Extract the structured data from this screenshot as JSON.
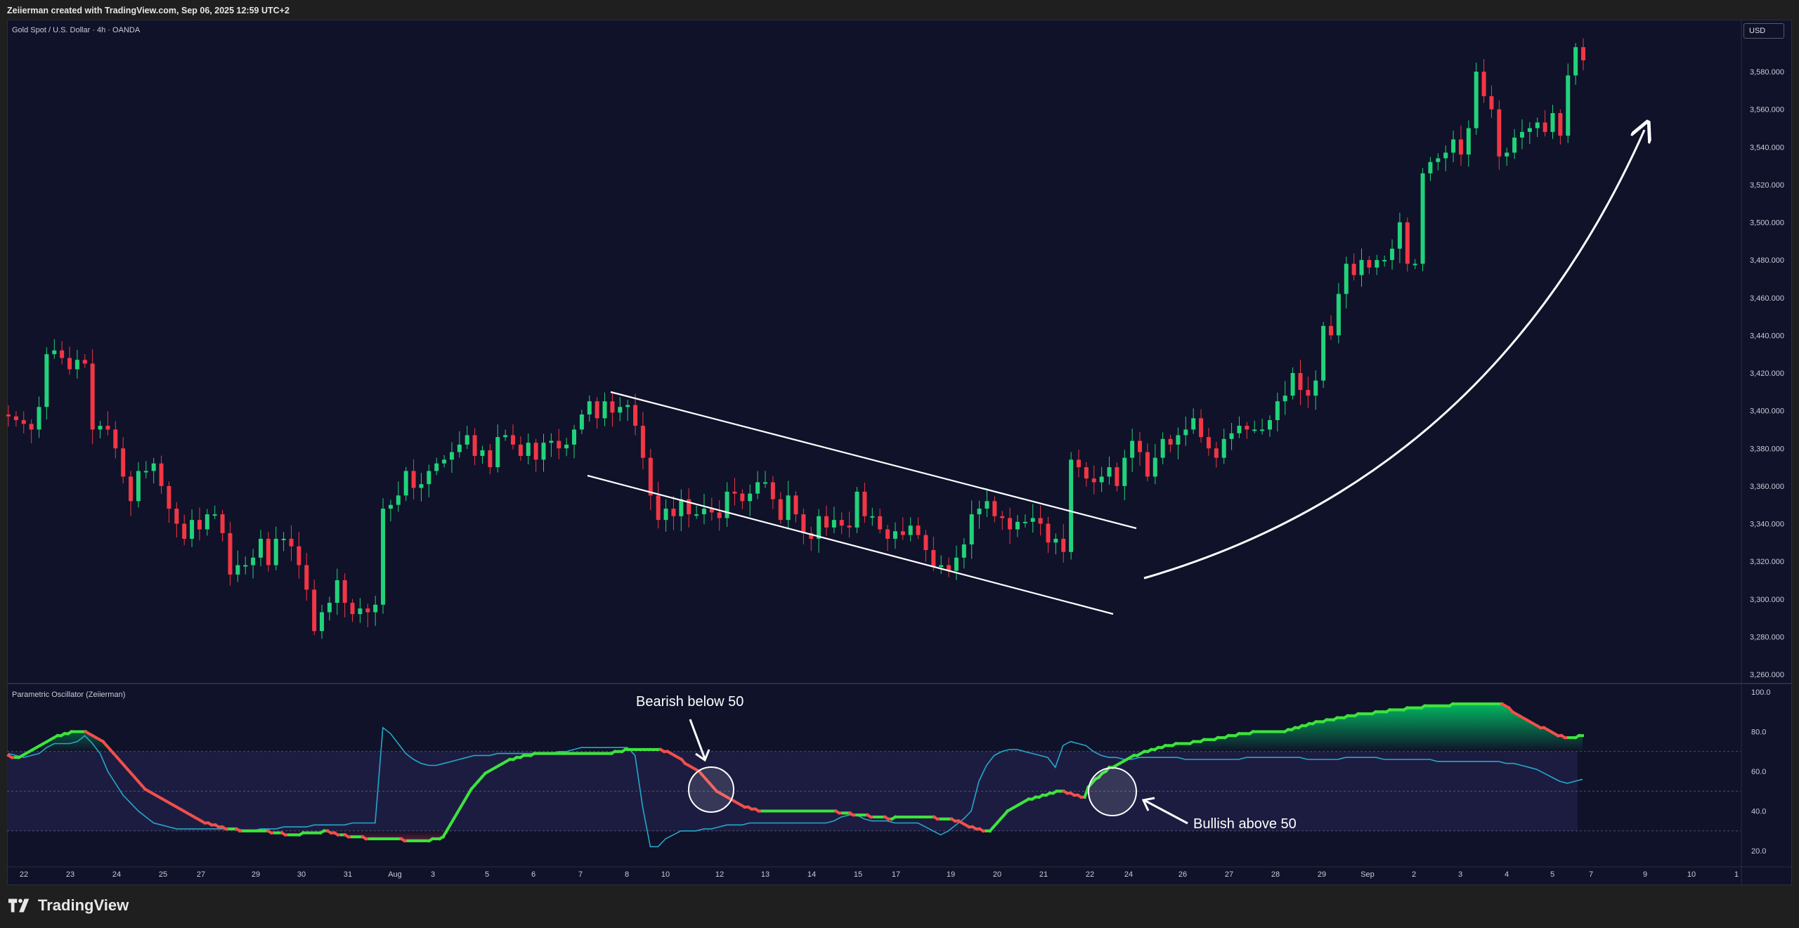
{
  "header": {
    "attribution": "Zeiierman created with TradingView.com, Sep 06, 2025 12:59 UTC+2"
  },
  "chart": {
    "symbol_title": "Gold Spot / U.S. Dollar · 4h · OANDA",
    "currency_button": "USD",
    "oscillator_title": "Parametric Oscillator (Zeiierman)",
    "annotations": {
      "bearish": "Bearish below 50",
      "bullish": "Bullish above 50"
    }
  },
  "footer": {
    "brand": "TradingView"
  },
  "colors": {
    "background": "#0f1229",
    "bull": "#22d27a",
    "bear": "#f23645",
    "osc_bull": "#3ee33e",
    "osc_bear": "#f0504a",
    "signal": "#26a7c9"
  },
  "chart_data": [
    {
      "type": "candlestick",
      "title": "Gold Spot / U.S. Dollar · 4h · OANDA",
      "y_axis_ticks": [
        3260,
        3280,
        3300,
        3320,
        3340,
        3360,
        3380,
        3400,
        3420,
        3440,
        3460,
        3480,
        3500,
        3520,
        3540,
        3560,
        3580
      ],
      "ylim": [
        3252,
        3600
      ],
      "x_tick_labels": [
        "22",
        "23",
        "24",
        "25",
        "27",
        "29",
        "30",
        "31",
        "Aug",
        "3",
        "5",
        "6",
        "7",
        "8",
        "10",
        "12",
        "13",
        "14",
        "15",
        "17",
        "19",
        "20",
        "21",
        "22",
        "24",
        "26",
        "27",
        "28",
        "29",
        "Sep",
        "2",
        "3",
        "4",
        "5",
        "7",
        "9",
        "10",
        "1"
      ],
      "close_series": [
        3397,
        3395,
        3393,
        3390,
        3402,
        3430,
        3432,
        3428,
        3422,
        3427,
        3425,
        3390,
        3392,
        3390,
        3380,
        3365,
        3352,
        3368,
        3368,
        3372,
        3360,
        3348,
        3340,
        3332,
        3342,
        3337,
        3345,
        3345,
        3335,
        3313,
        3318,
        3318,
        3322,
        3332,
        3318,
        3332,
        3332,
        3328,
        3318,
        3305,
        3283,
        3293,
        3298,
        3310,
        3298,
        3292,
        3295,
        3293,
        3297,
        3348,
        3350,
        3355,
        3368,
        3359,
        3361,
        3368,
        3372,
        3374,
        3378,
        3382,
        3387,
        3376,
        3379,
        3370,
        3386,
        3387,
        3382,
        3376,
        3383,
        3374,
        3383,
        3384,
        3380,
        3382,
        3390,
        3398,
        3405,
        3396,
        3405,
        3399,
        3402,
        3403,
        3392,
        3375,
        3355,
        3342,
        3348,
        3344,
        3353,
        3345,
        3345,
        3348,
        3346,
        3343,
        3357,
        3356,
        3352,
        3356,
        3362,
        3362,
        3353,
        3342,
        3355,
        3345,
        3335,
        3332,
        3344,
        3338,
        3342,
        3339,
        3338,
        3357,
        3344,
        3344,
        3337,
        3332,
        3336,
        3334,
        3339,
        3334,
        3326,
        3317,
        3318,
        3315,
        3322,
        3329,
        3345,
        3348,
        3352,
        3344,
        3343,
        3337,
        3341,
        3341,
        3343,
        3340,
        3330,
        3332,
        3325,
        3374,
        3370,
        3364,
        3362,
        3365,
        3370,
        3360,
        3375,
        3384,
        3378,
        3365,
        3375,
        3385,
        3382,
        3387,
        3390,
        3396,
        3386,
        3380,
        3375,
        3385,
        3388,
        3392,
        3390,
        3390,
        3390,
        3395,
        3405,
        3408,
        3420,
        3411,
        3408,
        3416,
        3445,
        3440,
        3462,
        3478,
        3472,
        3480,
        3476,
        3480,
        3480,
        3486,
        3500,
        3478,
        3478,
        3526,
        3532,
        3534,
        3537,
        3544,
        3536,
        3550,
        3580,
        3567,
        3560,
        3535,
        3537,
        3545,
        3548,
        3550,
        3553,
        3548,
        3558,
        3546,
        3578,
        3593,
        3586
      ],
      "annotations": [
        "descending channel",
        "upward curved arrow"
      ]
    },
    {
      "type": "line",
      "title": "Parametric Oscillator (Zeiierman)",
      "y_axis_ticks": [
        20,
        40,
        60,
        80,
        100
      ],
      "ylim": [
        13.4,
        102
      ],
      "levels": [
        30,
        50,
        70
      ],
      "series": [
        {
          "values": [
            68,
            67,
            67,
            67,
            68,
            69,
            70,
            71,
            72,
            73,
            74,
            75,
            76,
            77,
            78,
            78,
            79,
            79,
            80,
            80,
            80,
            80,
            80,
            79,
            78,
            77,
            76,
            75,
            73,
            71,
            69,
            67,
            65,
            63,
            61,
            59,
            57,
            55,
            53,
            51,
            50,
            49,
            48,
            47,
            46,
            45,
            44,
            43,
            42,
            41,
            40,
            39,
            38,
            37,
            36,
            35,
            34,
            34,
            33,
            33,
            32,
            32,
            31,
            31,
            31,
            31,
            30,
            30,
            30,
            30,
            30,
            30,
            30,
            30,
            30,
            29,
            29,
            29,
            29,
            28,
            28,
            28,
            28,
            28,
            29,
            29,
            29,
            29,
            29,
            29,
            30,
            30,
            29,
            29,
            28,
            28,
            28,
            27,
            27,
            27,
            27,
            27,
            26,
            26,
            26,
            26,
            26,
            26,
            26,
            26,
            26,
            26,
            26,
            25,
            25,
            25,
            25,
            25,
            25,
            25,
            25,
            26,
            26,
            26,
            27,
            30,
            33,
            36,
            39,
            42,
            45,
            48,
            51,
            53,
            55,
            57,
            59,
            60,
            61,
            62,
            63,
            64,
            65,
            66,
            66,
            67,
            67,
            68,
            68,
            68,
            69,
            69,
            69,
            69,
            69,
            69,
            69,
            69,
            69,
            69,
            69,
            69,
            69,
            69,
            69,
            69,
            69,
            69,
            69,
            69,
            69,
            69,
            69,
            70,
            70,
            70,
            71,
            71,
            71,
            71,
            71,
            71,
            71,
            71,
            71,
            71,
            71,
            70,
            70,
            69,
            68,
            67,
            66,
            64,
            63,
            62,
            61,
            60,
            58,
            56,
            54,
            52,
            50,
            49,
            48,
            47,
            46,
            45,
            44,
            43,
            42,
            42,
            41,
            41,
            40,
            40,
            40,
            40,
            40,
            40,
            40,
            40,
            40,
            40,
            40,
            40,
            40,
            40,
            40,
            40,
            40,
            40,
            40,
            40,
            40,
            40,
            40,
            39,
            39,
            39,
            39,
            38,
            38,
            38,
            38,
            38,
            37,
            37,
            37,
            37,
            37,
            36,
            36,
            37,
            37,
            37,
            37,
            37,
            37,
            37,
            37,
            37,
            37,
            37,
            37,
            36,
            36,
            36,
            36,
            36,
            35,
            35,
            34,
            33,
            32,
            32,
            31,
            31,
            30,
            30,
            30,
            32,
            34,
            36,
            38,
            40,
            41,
            42,
            43,
            44,
            45,
            46,
            46,
            47,
            47,
            48,
            48,
            49,
            49,
            50,
            50,
            50,
            49,
            49,
            48,
            48,
            47,
            47,
            52,
            54,
            56,
            57,
            59,
            60,
            62,
            62,
            63,
            64,
            65,
            66,
            67,
            68,
            68,
            69,
            70,
            70,
            71,
            71,
            72,
            72,
            73,
            73,
            73,
            74,
            74,
            74,
            74,
            74,
            75,
            75,
            75,
            76,
            76,
            76,
            76,
            77,
            77,
            77,
            78,
            78,
            78,
            79,
            79,
            79,
            79,
            80,
            80,
            80,
            80,
            80,
            80,
            80,
            80,
            80,
            80,
            81,
            81,
            82,
            82,
            83,
            83,
            84,
            84,
            85,
            85,
            85,
            86,
            86,
            86,
            87,
            87,
            87,
            88,
            88,
            88,
            89,
            89,
            89,
            89,
            89,
            90,
            90,
            90,
            90,
            91,
            91,
            91,
            91,
            91,
            92,
            92,
            92,
            92,
            92,
            93,
            93,
            93,
            93,
            93,
            93,
            93,
            93,
            94,
            94,
            94,
            94,
            94,
            94,
            94,
            94,
            94,
            94,
            94,
            94,
            94,
            94,
            94,
            93,
            92,
            90,
            89,
            88,
            87,
            86,
            85,
            84,
            83,
            82,
            82,
            81,
            80,
            79,
            78,
            78,
            77,
            77,
            77,
            77,
            78,
            78
          ]
        },
        {
          "values": [
            69,
            68,
            67,
            68,
            69,
            72,
            74,
            74,
            74,
            75,
            78,
            74,
            69,
            60,
            54,
            48,
            44,
            40,
            37,
            34,
            33,
            32,
            31,
            31,
            31,
            31,
            31,
            31,
            31,
            31,
            31,
            30,
            30,
            31,
            31,
            31,
            32,
            32,
            32,
            32,
            33,
            33,
            33,
            33,
            33,
            34,
            34,
            34,
            34,
            82,
            79,
            74,
            69,
            66,
            64,
            63,
            63,
            64,
            65,
            66,
            67,
            68,
            68,
            68,
            69,
            69,
            69,
            69,
            69,
            69,
            69,
            69,
            70,
            70,
            71,
            72,
            72,
            72,
            72,
            72,
            72,
            72,
            68,
            42,
            22,
            22,
            26,
            28,
            30,
            30,
            30,
            31,
            31,
            32,
            33,
            33,
            33,
            34,
            34,
            34,
            34,
            34,
            34,
            34,
            34,
            34,
            34,
            34,
            35,
            37,
            38,
            38,
            36,
            35,
            35,
            35,
            34,
            34,
            34,
            34,
            32,
            30,
            28,
            30,
            33,
            36,
            40,
            55,
            63,
            68,
            70,
            71,
            71,
            70,
            69,
            68,
            67,
            62,
            73,
            75,
            74,
            73,
            70,
            68,
            67,
            67,
            66,
            66,
            67,
            67,
            67,
            67,
            67,
            67,
            66,
            66,
            66,
            66,
            66,
            66,
            66,
            66,
            67,
            67,
            67,
            67,
            67,
            67,
            67,
            67,
            66,
            66,
            66,
            66,
            66,
            67,
            67,
            67,
            67,
            67,
            66,
            66,
            66,
            66,
            66,
            66,
            66,
            65,
            65,
            65,
            65,
            65,
            65,
            65,
            65,
            65,
            64,
            64,
            63,
            62,
            61,
            59,
            57,
            55,
            54,
            55,
            56
          ]
        }
      ],
      "x_tick_labels": [
        "22",
        "23",
        "24",
        "25",
        "27",
        "29",
        "30",
        "31",
        "Aug",
        "3",
        "5",
        "6",
        "7",
        "8",
        "10",
        "12",
        "13",
        "14",
        "15",
        "17",
        "19",
        "20",
        "21",
        "22",
        "24",
        "26",
        "27",
        "28",
        "29",
        "Sep",
        "2",
        "3",
        "4",
        "5",
        "7",
        "9",
        "10",
        "1"
      ]
    }
  ]
}
